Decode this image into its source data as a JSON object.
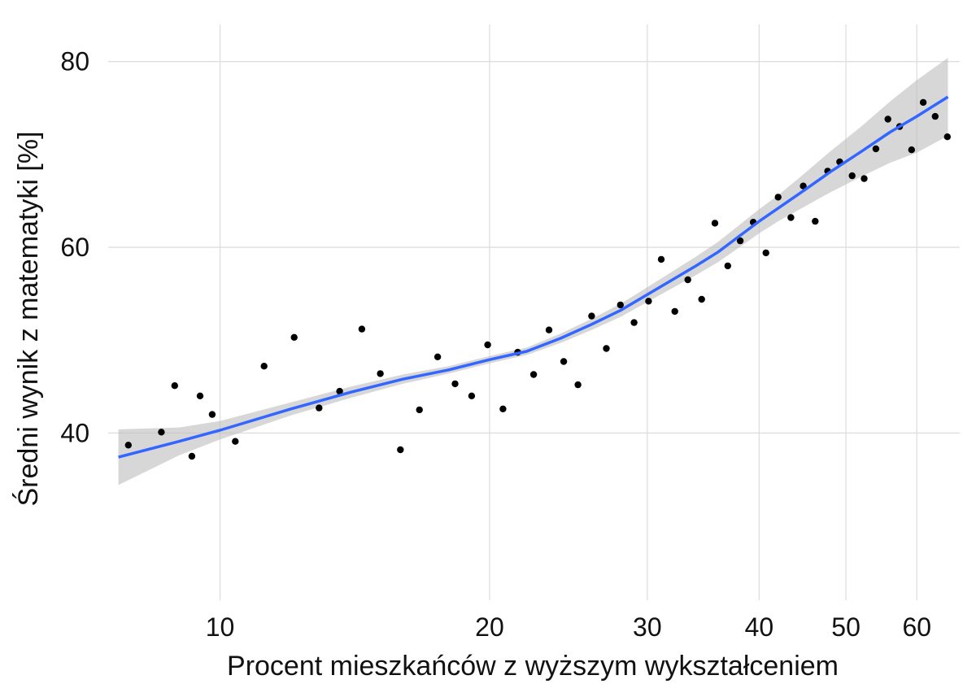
{
  "chart_data": {
    "type": "scatter",
    "title": "",
    "xlabel": "Procent mieszkańców z wyższym wykształceniem",
    "ylabel": "Średni wynik z matematyki [%]",
    "x_scale": "log",
    "xlim": [
      7.5,
      67
    ],
    "ylim": [
      22,
      84
    ],
    "x_ticks": [
      10,
      20,
      30,
      40,
      50,
      60
    ],
    "x_tick_labels": [
      "10",
      "20",
      "30",
      "40",
      "50",
      "60"
    ],
    "y_ticks": [
      40,
      60,
      80
    ],
    "y_tick_labels": [
      "40",
      "60",
      "80"
    ],
    "grid": true,
    "legend": "none",
    "point_color": "#000000",
    "smooth_color": "#3366ff",
    "band_color": "#bdbdbd",
    "points": {
      "x": [
        7.9,
        8.6,
        8.9,
        9.3,
        9.5,
        9.8,
        10.4,
        11.2,
        12.1,
        12.9,
        13.6,
        14.4,
        15.1,
        15.9,
        16.7,
        17.5,
        18.3,
        19.1,
        19.9,
        20.7,
        21.5,
        22.4,
        23.3,
        24.2,
        25.1,
        26.0,
        27.0,
        28.0,
        29.0,
        30.1,
        31.1,
        32.2,
        33.3,
        34.5,
        35.7,
        36.9,
        38.1,
        39.4,
        40.7,
        42.0,
        43.4,
        44.8,
        46.2,
        47.7,
        49.2,
        50.8,
        52.4,
        54.0,
        55.7,
        57.4,
        59.2,
        61.0,
        62.9,
        64.9
      ],
      "y": [
        38.7,
        40.1,
        45.1,
        37.5,
        44.0,
        42.0,
        39.1,
        47.2,
        50.3,
        42.7,
        44.5,
        51.2,
        46.4,
        38.2,
        42.5,
        48.2,
        45.3,
        44.0,
        49.5,
        42.6,
        48.7,
        46.3,
        51.1,
        47.7,
        45.2,
        52.6,
        49.1,
        53.8,
        51.9,
        54.2,
        58.7,
        53.1,
        56.5,
        54.4,
        62.6,
        58.0,
        60.7,
        62.7,
        59.4,
        65.4,
        63.2,
        66.6,
        62.8,
        68.2,
        69.2,
        67.7,
        67.4,
        70.6,
        73.8,
        73.0,
        70.5,
        75.6,
        74.1,
        71.9
      ]
    },
    "smooth": {
      "x": [
        7.7,
        9,
        10,
        12,
        14,
        16,
        18,
        20,
        22,
        24,
        26,
        28,
        30,
        32,
        34,
        36,
        38,
        40,
        42,
        45,
        48,
        52,
        56,
        60,
        65
      ],
      "y": [
        37.4,
        39.1,
        40.3,
        42.6,
        44.4,
        45.8,
        46.8,
        47.9,
        48.8,
        50.2,
        51.7,
        53.2,
        54.9,
        56.5,
        58.0,
        59.5,
        61.2,
        62.8,
        64.2,
        66.2,
        68.1,
        70.3,
        72.4,
        74.1,
        76.2
      ],
      "lower": [
        34.4,
        37.6,
        39.3,
        41.9,
        43.8,
        45.3,
        46.4,
        47.5,
        48.4,
        49.7,
        51.1,
        52.5,
        54.1,
        55.6,
        57.0,
        58.4,
        60.0,
        61.5,
        62.8,
        64.4,
        65.9,
        67.6,
        69.1,
        70.2,
        72.0
      ],
      "upper": [
        40.4,
        40.6,
        41.3,
        43.3,
        45.0,
        46.3,
        47.2,
        48.3,
        49.2,
        50.7,
        52.3,
        53.9,
        55.7,
        57.4,
        59.0,
        60.6,
        62.4,
        64.1,
        65.6,
        68.0,
        70.3,
        73.0,
        75.7,
        78.0,
        80.4
      ]
    }
  }
}
